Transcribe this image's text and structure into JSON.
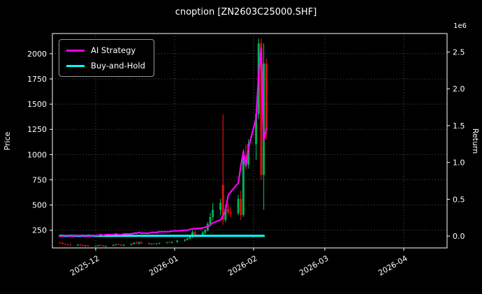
{
  "chart_data": {
    "type": "line+ohlc",
    "title": "cnoption [ZN2603C25000.SHF]",
    "ylabel_left": "Price",
    "ylabel_right": "Return",
    "right_axis_multiplier": "1e6",
    "background_color": "#000000",
    "text_color": "#ffffff",
    "grid_color": "#555555",
    "grid": true,
    "legend_position": "upper-left",
    "x_ticks": [
      "2025-12",
      "2026-01",
      "2026-02",
      "2026-03",
      "2026-04"
    ],
    "x_tick_dates": [
      "2025-12-01",
      "2026-01-01",
      "2026-02-01",
      "2026-03-01",
      "2026-04-01"
    ],
    "x_domain": [
      "2025-11-14",
      "2026-04-18"
    ],
    "price_ticks": [
      250,
      500,
      750,
      1000,
      1250,
      1500,
      1750,
      2000
    ],
    "price_ylim": [
      75,
      2200
    ],
    "return_ticks": [
      0.0,
      0.5,
      1.0,
      1.5,
      2.0,
      2.5
    ],
    "return_ylim": [
      -0.16,
      2.75
    ],
    "series": [
      {
        "name": "AI Strategy",
        "color": "#ff00ff",
        "axis": "return",
        "width": 2.2,
        "dates": [
          "2025-11-17",
          "2025-11-18",
          "2025-11-19",
          "2025-11-20",
          "2025-11-21",
          "2025-11-24",
          "2025-11-25",
          "2025-11-26",
          "2025-11-27",
          "2025-11-28",
          "2025-12-01",
          "2025-12-02",
          "2025-12-03",
          "2025-12-04",
          "2025-12-05",
          "2025-12-08",
          "2025-12-09",
          "2025-12-10",
          "2025-12-11",
          "2025-12-12",
          "2025-12-15",
          "2025-12-16",
          "2025-12-17",
          "2025-12-18",
          "2025-12-19",
          "2025-12-22",
          "2025-12-23",
          "2025-12-24",
          "2025-12-25",
          "2025-12-26",
          "2025-12-29",
          "2025-12-30",
          "2025-12-31",
          "2026-01-02",
          "2026-01-05",
          "2026-01-06",
          "2026-01-07",
          "2026-01-08",
          "2026-01-09",
          "2026-01-12",
          "2026-01-13",
          "2026-01-14",
          "2026-01-15",
          "2026-01-16",
          "2026-01-19",
          "2026-01-20",
          "2026-01-21",
          "2026-01-22",
          "2026-01-23",
          "2026-01-26",
          "2026-01-27",
          "2026-01-28",
          "2026-01-29",
          "2026-01-30",
          "2026-02-02",
          "2026-02-03",
          "2026-02-04",
          "2026-02-05",
          "2026-02-06"
        ],
        "values": [
          0.0,
          0.0,
          0.01,
          0.01,
          0.0,
          0.01,
          0.01,
          0.0,
          0.01,
          0.0,
          0.01,
          0.01,
          0.02,
          0.01,
          0.02,
          0.02,
          0.03,
          0.02,
          0.02,
          0.03,
          0.03,
          0.04,
          0.04,
          0.05,
          0.04,
          0.04,
          0.05,
          0.05,
          0.05,
          0.06,
          0.06,
          0.06,
          0.07,
          0.07,
          0.08,
          0.08,
          0.09,
          0.1,
          0.1,
          0.11,
          0.12,
          0.13,
          0.15,
          0.18,
          0.22,
          0.28,
          0.35,
          0.55,
          0.6,
          0.72,
          0.95,
          1.15,
          0.95,
          1.2,
          1.6,
          2.2,
          2.55,
          1.3,
          1.45
        ]
      },
      {
        "name": "Buy-and-Hold",
        "color": "#00ffff",
        "axis": "return",
        "width": 3.2,
        "dates": [
          "2025-11-17",
          "2026-02-05"
        ],
        "values": [
          0.004,
          0.004
        ]
      }
    ],
    "ohlc": {
      "up_color": "#00b050",
      "down_color": "#dd1111",
      "candles": [
        [
          "2025-11-17",
          130,
          135,
          118,
          124
        ],
        [
          "2025-11-18",
          124,
          128,
          110,
          114
        ],
        [
          "2025-11-19",
          114,
          120,
          104,
          110
        ],
        [
          "2025-11-20",
          110,
          118,
          100,
          106
        ],
        [
          "2025-11-21",
          106,
          112,
          96,
          100
        ],
        [
          "2025-11-24",
          100,
          110,
          95,
          108
        ],
        [
          "2025-11-25",
          108,
          115,
          99,
          102
        ],
        [
          "2025-11-26",
          102,
          108,
          92,
          95
        ],
        [
          "2025-11-27",
          95,
          103,
          88,
          99
        ],
        [
          "2025-11-28",
          99,
          105,
          90,
          92
        ],
        [
          "2025-12-01",
          92,
          100,
          85,
          96
        ],
        [
          "2025-12-02",
          96,
          106,
          90,
          103
        ],
        [
          "2025-12-03",
          103,
          110,
          95,
          98
        ],
        [
          "2025-12-04",
          98,
          104,
          88,
          90
        ],
        [
          "2025-12-05",
          90,
          98,
          84,
          96
        ],
        [
          "2025-12-08",
          96,
          108,
          92,
          105
        ],
        [
          "2025-12-09",
          105,
          115,
          98,
          111
        ],
        [
          "2025-12-10",
          111,
          120,
          102,
          107
        ],
        [
          "2025-12-11",
          107,
          112,
          95,
          99
        ],
        [
          "2025-12-12",
          99,
          110,
          92,
          106
        ],
        [
          "2025-12-15",
          106,
          118,
          100,
          115
        ],
        [
          "2025-12-16",
          115,
          130,
          108,
          126
        ],
        [
          "2025-12-17",
          126,
          140,
          114,
          119
        ],
        [
          "2025-12-18",
          119,
          136,
          110,
          131
        ],
        [
          "2025-12-19",
          131,
          138,
          117,
          121
        ],
        [
          "2025-12-22",
          121,
          128,
          108,
          112
        ],
        [
          "2025-12-23",
          112,
          121,
          105,
          118
        ],
        [
          "2025-12-24",
          118,
          125,
          109,
          114
        ],
        [
          "2025-12-25",
          114,
          122,
          107,
          120
        ],
        [
          "2025-12-26",
          120,
          128,
          112,
          125
        ],
        [
          "2025-12-29",
          125,
          135,
          118,
          131
        ],
        [
          "2025-12-30",
          131,
          140,
          121,
          127
        ],
        [
          "2025-12-31",
          127,
          138,
          120,
          135
        ],
        [
          "2026-01-02",
          135,
          152,
          128,
          147
        ],
        [
          "2026-01-05",
          147,
          162,
          138,
          156
        ],
        [
          "2026-01-06",
          156,
          176,
          148,
          169
        ],
        [
          "2026-01-07",
          169,
          192,
          160,
          183
        ],
        [
          "2026-01-08",
          183,
          252,
          176,
          232
        ],
        [
          "2026-01-09",
          232,
          246,
          198,
          209
        ],
        [
          "2026-01-12",
          209,
          241,
          194,
          226
        ],
        [
          "2026-01-13",
          226,
          262,
          211,
          251
        ],
        [
          "2026-01-14",
          251,
          332,
          239,
          312
        ],
        [
          "2026-01-15",
          312,
          422,
          288,
          381
        ],
        [
          "2026-01-16",
          381,
          521,
          349,
          452
        ],
        [
          "2026-01-19",
          452,
          562,
          398,
          521
        ],
        [
          "2026-01-20",
          700,
          1400,
          305,
          352
        ],
        [
          "2026-01-21",
          352,
          502,
          328,
          462
        ],
        [
          "2026-01-22",
          462,
          521,
          401,
          428
        ],
        [
          "2026-01-23",
          428,
          481,
          378,
          419
        ],
        [
          "2026-01-26",
          419,
          602,
          398,
          561
        ],
        [
          "2026-01-27",
          561,
          641,
          352,
          401
        ],
        [
          "2026-01-28",
          401,
          1052,
          382,
          981
        ],
        [
          "2026-01-29",
          981,
          1102,
          852,
          901
        ],
        [
          "2026-01-30",
          901,
          1151,
          861,
          1102
        ],
        [
          "2026-02-02",
          1102,
          1452,
          948,
          1401
        ],
        [
          "2026-02-03",
          1401,
          2148,
          1352,
          2102
        ],
        [
          "2026-02-04",
          2102,
          2148,
          748,
          798
        ],
        [
          "2026-02-05",
          798,
          2102,
          452,
          1902
        ],
        [
          "2026-02-06",
          1902,
          1952,
          1148,
          1252
        ]
      ]
    }
  }
}
